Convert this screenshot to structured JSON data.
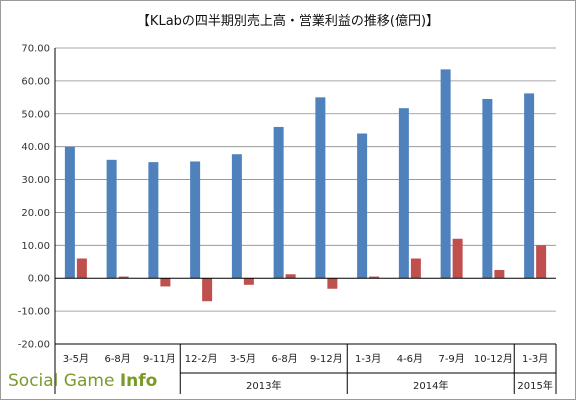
{
  "chart_data": {
    "type": "bar",
    "title": "【KLabの四半期別売上高・営業利益の推移(億円)】",
    "categories": [
      "3-5月",
      "6-8月",
      "9-11月",
      "12-2月",
      "3-5月",
      "6-8月",
      "9-12月",
      "1-3月",
      "4-6月",
      "7-9月",
      "10-12月",
      "1-3月"
    ],
    "year_groups": [
      {
        "label": "",
        "start": 0,
        "end": 3
      },
      {
        "label": "2013年",
        "start": 3,
        "end": 7
      },
      {
        "label": "2014年",
        "start": 7,
        "end": 11
      },
      {
        "label": "2015年",
        "start": 11,
        "end": 12
      }
    ],
    "series": [
      {
        "values": [
          40.0,
          36.0,
          35.3,
          35.5,
          37.7,
          46.0,
          55.0,
          44.0,
          51.7,
          63.5,
          54.5,
          56.2
        ],
        "color": "#4f81bd"
      },
      {
        "values": [
          6.0,
          0.5,
          -2.5,
          -7.0,
          -2.0,
          1.2,
          -3.2,
          0.5,
          6.0,
          12.0,
          2.5,
          10.0
        ],
        "color": "#c0504d"
      }
    ],
    "ylim": [
      -20,
      70
    ],
    "yticks": [
      "-20.00",
      "-10.00",
      "0.00",
      "10.00",
      "20.00",
      "30.00",
      "40.00",
      "50.00",
      "60.00",
      "70.00"
    ],
    "grid": true,
    "legend": "none"
  },
  "watermark": {
    "prefix": "Social Game ",
    "suffix": "Info"
  }
}
